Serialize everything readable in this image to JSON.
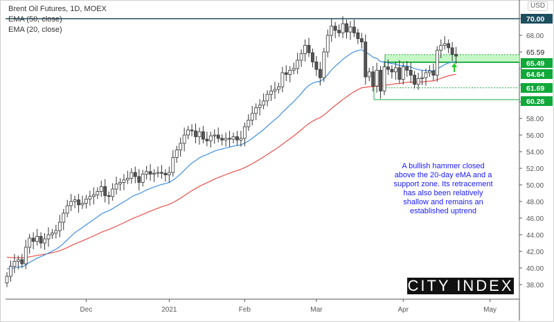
{
  "legend": {
    "title": "Brent Oil Futures, 1D, MOEX",
    "ema50": "EMA (50, close)",
    "ema20": "EMA (20, close)"
  },
  "currency": "USD",
  "annotation": "A bullish hammer closed above the 20-day eMA and a support zone. Its retracement has also been relatively shallow and remains an established uptrend",
  "logo": "CITY INDEX",
  "colors": {
    "ema50": "#e8504a",
    "ema20": "#3d8fe0",
    "support": "#22aa44",
    "zone": "#b8f5b8",
    "top_line": "#1d4f5e",
    "annotation": "#1a1aff"
  },
  "chart_data": {
    "type": "candlestick",
    "ylim": [
      36,
      71
    ],
    "y_ticks": [
      38,
      40,
      42,
      44,
      46,
      48,
      50,
      52,
      54,
      56,
      58,
      60,
      62,
      64,
      66,
      68,
      70
    ],
    "x_ticks": [
      {
        "label": "Dec",
        "index": 21
      },
      {
        "label": "2021",
        "index": 43
      },
      {
        "label": "Feb",
        "index": 63
      },
      {
        "label": "Mar",
        "index": 82
      },
      {
        "label": "Apr",
        "index": 105
      },
      {
        "label": "May",
        "index": 128
      }
    ],
    "price_labels": [
      {
        "value": 70.0,
        "label": "70.00",
        "style": "top"
      },
      {
        "value": 65.59,
        "label": "65.59",
        "style": "plain"
      },
      {
        "value": 65.49,
        "label": "65.49",
        "style": "green"
      },
      {
        "value": 64.64,
        "label": "64.64",
        "style": "green"
      },
      {
        "value": 61.69,
        "label": "61.69",
        "style": "green"
      },
      {
        "value": 60.26,
        "label": "60.26",
        "style": "green"
      }
    ],
    "zone": [
      65.49,
      65.59
    ],
    "closes": [
      39.0,
      40.2,
      40.8,
      41.0,
      40.5,
      42.5,
      43.6,
      43.2,
      43.8,
      43.0,
      43.5,
      44.0,
      44.2,
      44.5,
      45.5,
      46.6,
      47.5,
      48.0,
      48.2,
      47.6,
      47.8,
      48.3,
      48.6,
      48.8,
      49.2,
      49.8,
      48.7,
      48.6,
      49.5,
      50.1,
      50.3,
      50.6,
      50.8,
      51.5,
      51.0,
      50.3,
      51.3,
      51.6,
      51.3,
      51.4,
      51.5,
      51.4,
      51.2,
      51.5,
      53.3,
      54.2,
      55.0,
      56.0,
      56.6,
      56.5,
      55.8,
      56.4,
      55.5,
      55.3,
      55.9,
      56.0,
      55.6,
      55.4,
      55.6,
      55.5,
      55.8,
      55.4,
      55.6,
      57.0,
      57.8,
      58.6,
      59.3,
      59.6,
      60.1,
      60.9,
      61.3,
      61.5,
      61.8,
      63.5,
      63.3,
      63.8,
      64.0,
      65.0,
      65.8,
      66.8,
      65.9,
      64.8,
      63.9,
      62.9,
      66.0,
      68.0,
      69.1,
      68.6,
      68.3,
      69.4,
      68.4,
      69.0,
      68.3,
      67.6,
      67.2,
      63.0,
      63.6,
      61.9,
      63.8,
      61.3,
      64.2,
      63.9,
      63.6,
      64.1,
      62.7,
      64.2,
      63.8,
      63.2,
      62.1,
      62.8,
      62.9,
      63.5,
      63.7,
      63.2,
      66.2,
      66.8,
      67.0,
      66.5,
      65.7,
      65.5
    ]
  }
}
